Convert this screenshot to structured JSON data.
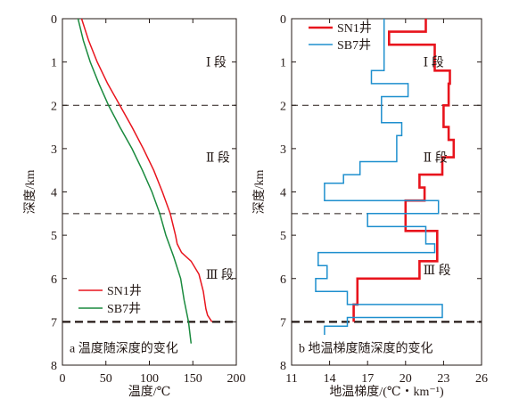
{
  "chart_data": [
    {
      "type": "line",
      "panel_label": "a 温度随深度的变化",
      "xlabel": "温度/℃",
      "ylabel": "深度/km",
      "xlim": [
        0,
        200
      ],
      "ylim": [
        0,
        8
      ],
      "y_inverted": true,
      "x_ticks": [
        "0",
        "50",
        "100",
        "150",
        "200"
      ],
      "y_ticks": [
        "0",
        "1",
        "2",
        "3",
        "4",
        "5",
        "6",
        "7",
        "8"
      ],
      "reference_lines": [
        {
          "depth": 2,
          "style": "dashed"
        },
        {
          "depth": 4.5,
          "style": "dashed"
        },
        {
          "depth": 7,
          "style": "dashed-bold"
        }
      ],
      "segment_labels": [
        {
          "text": "Ⅰ 段",
          "depth": 1,
          "x": 165
        },
        {
          "text": "Ⅱ 段",
          "depth": 3.2,
          "x": 165
        },
        {
          "text": "Ⅲ 段",
          "depth": 5.9,
          "x": 165
        }
      ],
      "legend": {
        "position": "bottom-left"
      },
      "series": [
        {
          "name": "SN1井",
          "color": "#e8141d",
          "points": [
            [
              22,
              0
            ],
            [
              30,
              0.5
            ],
            [
              40,
              1
            ],
            [
              52,
              1.5
            ],
            [
              66,
              2
            ],
            [
              80,
              2.5
            ],
            [
              93,
              3
            ],
            [
              105,
              3.5
            ],
            [
              115,
              4
            ],
            [
              124,
              4.5
            ],
            [
              130,
              5
            ],
            [
              132,
              5.2
            ],
            [
              137,
              5.4
            ],
            [
              148,
              5.6
            ],
            [
              157,
              5.9
            ],
            [
              162,
              6.3
            ],
            [
              165,
              6.7
            ],
            [
              167,
              6.85
            ],
            [
              172,
              7
            ]
          ]
        },
        {
          "name": "SB7井",
          "color": "#1a8a3e",
          "points": [
            [
              18,
              0
            ],
            [
              24,
              0.5
            ],
            [
              32,
              1
            ],
            [
              42,
              1.5
            ],
            [
              53,
              2
            ],
            [
              66,
              2.5
            ],
            [
              80,
              3
            ],
            [
              92,
              3.5
            ],
            [
              103,
              4
            ],
            [
              112,
              4.5
            ],
            [
              119,
              5
            ],
            [
              128,
              5.5
            ],
            [
              136,
              6
            ],
            [
              140,
              6.5
            ],
            [
              145,
              7
            ],
            [
              148,
              7.5
            ]
          ]
        }
      ]
    },
    {
      "type": "line",
      "panel_label": "b 地温梯度随深度的变化",
      "xlabel": "地温梯度/(℃・km⁻¹)",
      "ylabel": "深度/km",
      "xlim": [
        11,
        26
      ],
      "ylim": [
        0,
        8
      ],
      "y_inverted": true,
      "x_ticks": [
        "11",
        "14",
        "17",
        "20",
        "23",
        "26"
      ],
      "y_ticks": [
        "0",
        "1",
        "2",
        "3",
        "4",
        "5",
        "6",
        "7",
        "8"
      ],
      "reference_lines": [
        {
          "depth": 2,
          "style": "dashed"
        },
        {
          "depth": 4.5,
          "style": "dashed"
        },
        {
          "depth": 7,
          "style": "dashed-bold"
        }
      ],
      "segment_labels": [
        {
          "text": "Ⅰ 段",
          "depth": 1,
          "x": 21.4
        },
        {
          "text": "Ⅱ 段",
          "depth": 3.2,
          "x": 21.4
        },
        {
          "text": "Ⅲ 段",
          "depth": 5.8,
          "x": 21.4
        }
      ],
      "legend": {
        "position": "top-left"
      },
      "series": [
        {
          "name": "SN1井",
          "color": "#e8141d",
          "points": [
            [
              21.6,
              0
            ],
            [
              21.6,
              0.3
            ],
            [
              18.7,
              0.3
            ],
            [
              18.7,
              0.6
            ],
            [
              22.3,
              0.6
            ],
            [
              22.3,
              1.2
            ],
            [
              23.5,
              1.2
            ],
            [
              23.5,
              1.5
            ],
            [
              23.4,
              1.5
            ],
            [
              23.4,
              2
            ],
            [
              23,
              2
            ],
            [
              23,
              2.5
            ],
            [
              23.4,
              2.5
            ],
            [
              23.4,
              2.8
            ],
            [
              23.8,
              2.8
            ],
            [
              23.8,
              3.2
            ],
            [
              22.9,
              3.2
            ],
            [
              22.9,
              3.6
            ],
            [
              21.1,
              3.6
            ],
            [
              21.1,
              3.9
            ],
            [
              21.5,
              3.9
            ],
            [
              21.5,
              4.2
            ],
            [
              20,
              4.2
            ],
            [
              20,
              4.9
            ],
            [
              22.5,
              4.9
            ],
            [
              22.5,
              5.6
            ],
            [
              21.1,
              5.6
            ],
            [
              21.1,
              6
            ],
            [
              16.2,
              6
            ],
            [
              16.2,
              6.6
            ],
            [
              15.9,
              6.6
            ],
            [
              15.9,
              7
            ]
          ]
        },
        {
          "name": "SB7井",
          "color": "#1e8fce",
          "points": [
            [
              18.3,
              0
            ],
            [
              18.3,
              1.2
            ],
            [
              17.3,
              1.2
            ],
            [
              17.3,
              1.5
            ],
            [
              20.2,
              1.5
            ],
            [
              20.2,
              1.8
            ],
            [
              18.1,
              1.8
            ],
            [
              18.1,
              2.4
            ],
            [
              19.7,
              2.4
            ],
            [
              19.7,
              2.7
            ],
            [
              19.3,
              2.7
            ],
            [
              19.3,
              3.3
            ],
            [
              16.4,
              3.3
            ],
            [
              16.4,
              3.6
            ],
            [
              15.1,
              3.6
            ],
            [
              15.1,
              3.8
            ],
            [
              13.6,
              3.8
            ],
            [
              13.6,
              4.2
            ],
            [
              22.6,
              4.2
            ],
            [
              22.6,
              4.5
            ],
            [
              17,
              4.5
            ],
            [
              17,
              4.8
            ],
            [
              21.6,
              4.8
            ],
            [
              21.6,
              5.2
            ],
            [
              22.3,
              5.2
            ],
            [
              22.3,
              5.4
            ],
            [
              13.1,
              5.4
            ],
            [
              13.1,
              5.7
            ],
            [
              13.8,
              5.7
            ],
            [
              13.8,
              6
            ],
            [
              12.9,
              6
            ],
            [
              12.9,
              6.3
            ],
            [
              15.4,
              6.3
            ],
            [
              15.4,
              6.6
            ],
            [
              22.9,
              6.6
            ],
            [
              22.9,
              6.9
            ],
            [
              15.4,
              6.9
            ],
            [
              15.4,
              7.1
            ],
            [
              13.6,
              7.1
            ],
            [
              13.6,
              7.3
            ]
          ]
        }
      ]
    }
  ]
}
